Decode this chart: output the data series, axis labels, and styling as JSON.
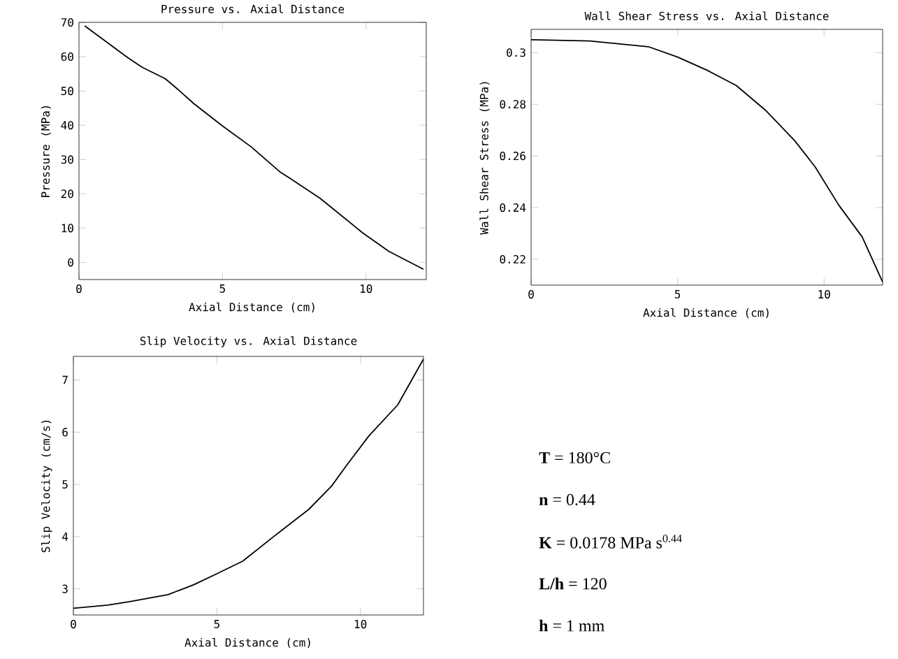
{
  "chart_data": [
    {
      "type": "line",
      "title": "Pressure vs. Axial Distance",
      "xlabel": "Axial Distance (cm)",
      "ylabel": "Pressure (MPa)",
      "x": [
        0.2,
        1.7,
        2.2,
        3.0,
        3.4,
        4.0,
        5.0,
        6.0,
        7.0,
        7.3,
        8.4,
        9.9,
        10.8,
        12.0
      ],
      "values": [
        69,
        59.7,
        56.9,
        53.6,
        50.8,
        46.3,
        39.8,
        33.7,
        26.4,
        24.8,
        18.7,
        8.5,
        3.2,
        -2.0
      ],
      "color": "#000000",
      "xlim": [
        0,
        12.1
      ],
      "ylim": [
        -5,
        70
      ],
      "xticks": [
        0,
        5,
        10
      ],
      "yticks": [
        0,
        10,
        20,
        30,
        40,
        50,
        60,
        70
      ]
    },
    {
      "type": "line",
      "title": "Wall Shear Stress vs. Axial Distance",
      "xlabel": "Axial Distance (cm)",
      "ylabel": "Wall Shear Stress (MPa)",
      "x": [
        0,
        2,
        4,
        5,
        6,
        7,
        8,
        9,
        9.7,
        10.5,
        11.3,
        12
      ],
      "values": [
        0.305,
        0.3045,
        0.3023,
        0.2983,
        0.2932,
        0.2873,
        0.2777,
        0.2659,
        0.2557,
        0.241,
        0.2287,
        0.2112
      ],
      "color": "#000000",
      "xlim": [
        0,
        12
      ],
      "ylim": [
        0.21,
        0.309
      ],
      "xticks": [
        0,
        5,
        10
      ],
      "yticks": [
        0.22,
        0.24,
        0.26,
        0.28,
        0.3
      ]
    },
    {
      "type": "line",
      "title": "Slip Velocity vs. Axial Distance",
      "xlabel": "Axial Distance (cm)",
      "ylabel": "Slip Velocity (cm/s)",
      "x": [
        0,
        1.2,
        2,
        3.3,
        4.2,
        5,
        5.9,
        7,
        8.2,
        9,
        9.5,
        10.3,
        11.3,
        12.2
      ],
      "values": [
        2.63,
        2.69,
        2.76,
        2.89,
        3.08,
        3.29,
        3.53,
        4.01,
        4.52,
        4.97,
        5.35,
        5.93,
        6.52,
        7.4
      ],
      "color": "#000000",
      "xlim": [
        0,
        12.2
      ],
      "ylim": [
        2.5,
        7.45
      ],
      "xticks": [
        0,
        5,
        10
      ],
      "yticks": [
        3,
        4,
        5,
        6,
        7
      ]
    },
    {
      "type": "other",
      "annotations": [
        "**T** = 180°C",
        "**n** = 0.44",
        "**K** = 0.0178 MPa s$^{0.44}$",
        "**L/h** = 120",
        "**h** = 1 mm"
      ]
    }
  ]
}
